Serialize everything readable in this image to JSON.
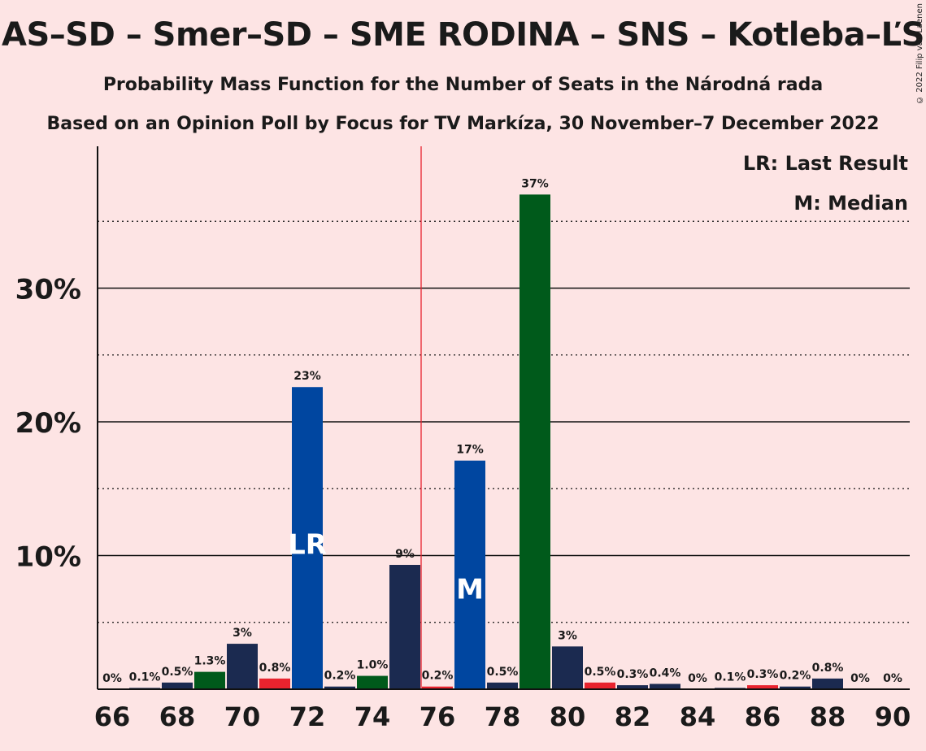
{
  "title": "AS–SD – Smer–SD – SME RODINA – SNS – Kotleba–ĽS",
  "subtitle1": "Probability Mass Function for the Number of Seats in the Národná rada",
  "subtitle2": "Based on an Opinion Poll by Focus for TV Markíza, 30 November–7 December 2022",
  "copyright": "© 2022 Filip van Laenen",
  "legend": {
    "lr": "LR: Last Result",
    "m": "M: Median"
  },
  "colors": {
    "background": "#fde4e4",
    "navy": "#1b2a50",
    "blue": "#0046a0",
    "green": "#005a1b",
    "red": "#e8232e",
    "majority_line": "#e8232e"
  },
  "chart_data": {
    "type": "bar",
    "x": [
      66,
      67,
      68,
      69,
      70,
      71,
      72,
      73,
      74,
      75,
      76,
      77,
      78,
      79,
      80,
      81,
      82,
      83,
      84,
      85,
      86,
      87,
      88,
      89,
      90
    ],
    "values": [
      0,
      0.1,
      0.5,
      1.3,
      3.4,
      0.8,
      22.6,
      0.2,
      1.0,
      9.3,
      0.2,
      17.1,
      0.5,
      37.0,
      3.2,
      0.5,
      0.3,
      0.4,
      0,
      0.1,
      0.3,
      0.2,
      0.8,
      0,
      0
    ],
    "labels": [
      "0%",
      "0.1%",
      "0.5%",
      "1.3%",
      "3%",
      "0.8%",
      "23%",
      "0.2%",
      "1.0%",
      "9%",
      "0.2%",
      "17%",
      "0.5%",
      "37%",
      "3%",
      "0.5%",
      "0.3%",
      "0.4%",
      "0%",
      "0.1%",
      "0.3%",
      "0.2%",
      "0.8%",
      "0%",
      "0%"
    ],
    "bar_colors": [
      "navy",
      "navy",
      "navy",
      "green",
      "navy",
      "red",
      "blue",
      "navy",
      "green",
      "navy",
      "red",
      "blue",
      "navy",
      "green",
      "navy",
      "red",
      "navy",
      "navy",
      "navy",
      "navy",
      "red",
      "navy",
      "navy",
      "navy",
      "navy"
    ],
    "ylim": [
      0,
      40
    ],
    "y_ticks_major": [
      10,
      20,
      30
    ],
    "y_tick_labels": [
      "10%",
      "20%",
      "30%"
    ],
    "y_ticks_minor": [
      5,
      15,
      25,
      35
    ],
    "x_tick_labels": [
      66,
      68,
      70,
      72,
      74,
      76,
      78,
      80,
      82,
      84,
      86,
      88,
      90
    ],
    "majority_line_x": 75.5,
    "last_result": {
      "seats": 72,
      "label": "LR"
    },
    "median": {
      "seats": 77,
      "label": "M"
    },
    "legend_position": "top-right"
  }
}
